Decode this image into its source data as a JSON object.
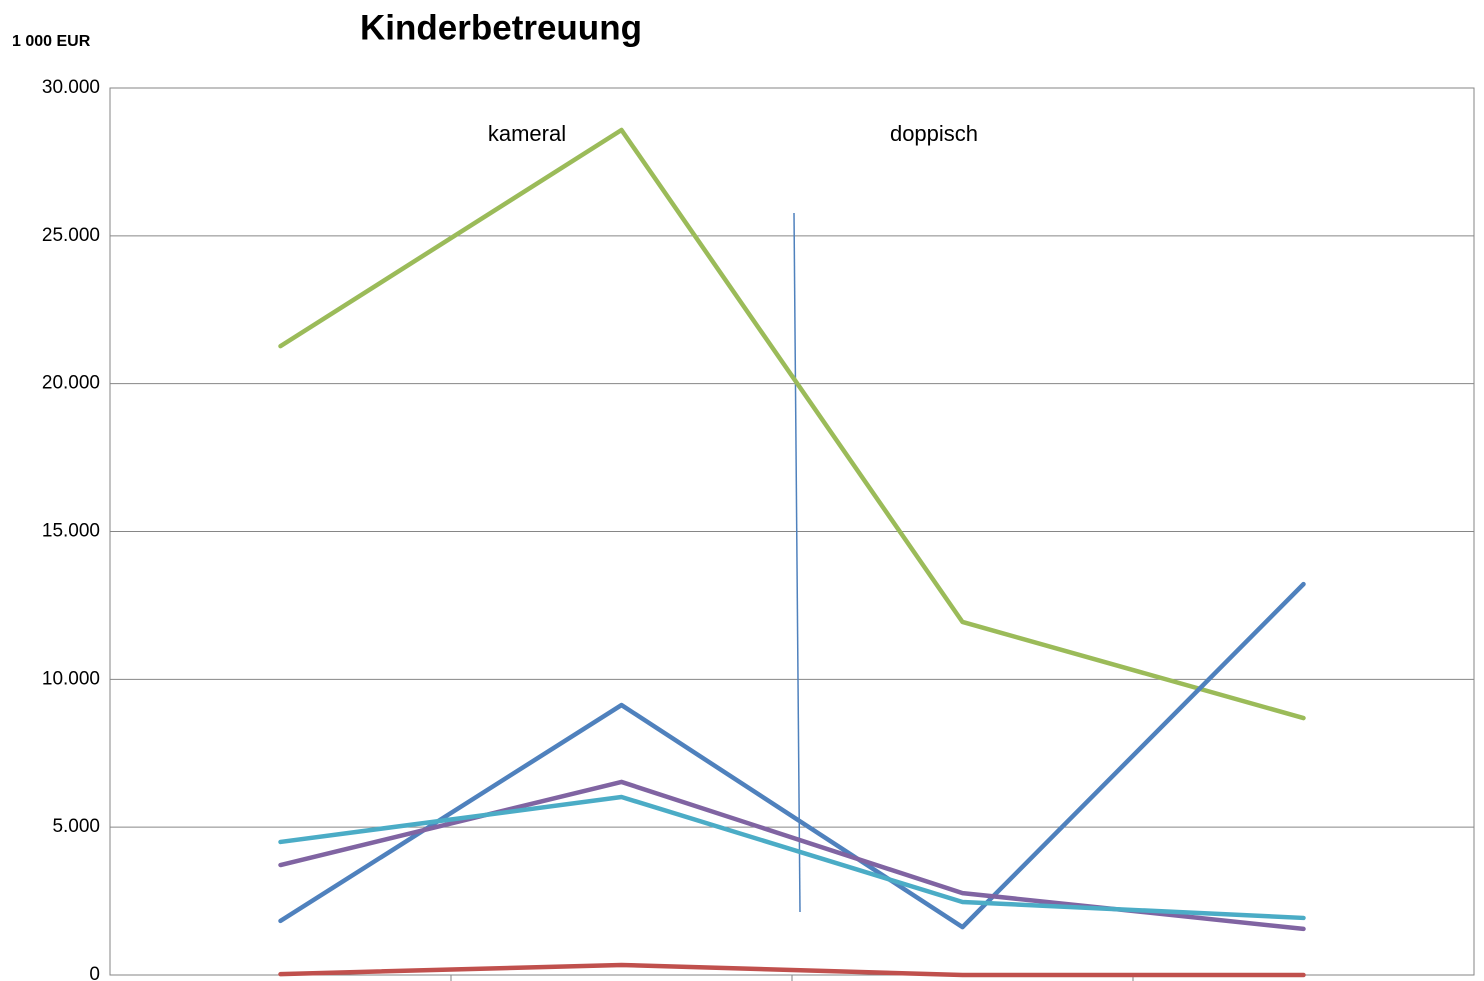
{
  "chart_data": {
    "type": "line",
    "title": "Kinderbetreuung",
    "y_unit_label": "1 000 EUR",
    "annotations": [
      "kameral",
      "doppisch"
    ],
    "categories": [
      null,
      null,
      null,
      null
    ],
    "series": [
      {
        "color": "#9bbb59",
        "values": [
          21270,
          28580,
          11940,
          8690
        ]
      },
      {
        "color": "#4f81bd",
        "values": [
          1830,
          9130,
          1620,
          13220
        ]
      },
      {
        "color": "#8064a2",
        "values": [
          3720,
          6530,
          2770,
          1560
        ]
      },
      {
        "color": "#4bacc6",
        "values": [
          4500,
          6020,
          2470,
          1930
        ]
      },
      {
        "color": "#c0504d",
        "values": [
          30,
          340,
          0,
          0
        ]
      }
    ],
    "ylim": [
      0,
      30000
    ],
    "yticks": [
      0,
      {
        "value": 5000,
        "label": "5.000"
      },
      {
        "value": 10000,
        "label": "10.000"
      },
      {
        "value": 15000,
        "label": "15.000"
      },
      {
        "value": 20000,
        "label": "20.000"
      },
      {
        "value": 25000,
        "label": "25.000"
      },
      {
        "value": 30000,
        "label": "30.000"
      }
    ],
    "grid": true
  }
}
